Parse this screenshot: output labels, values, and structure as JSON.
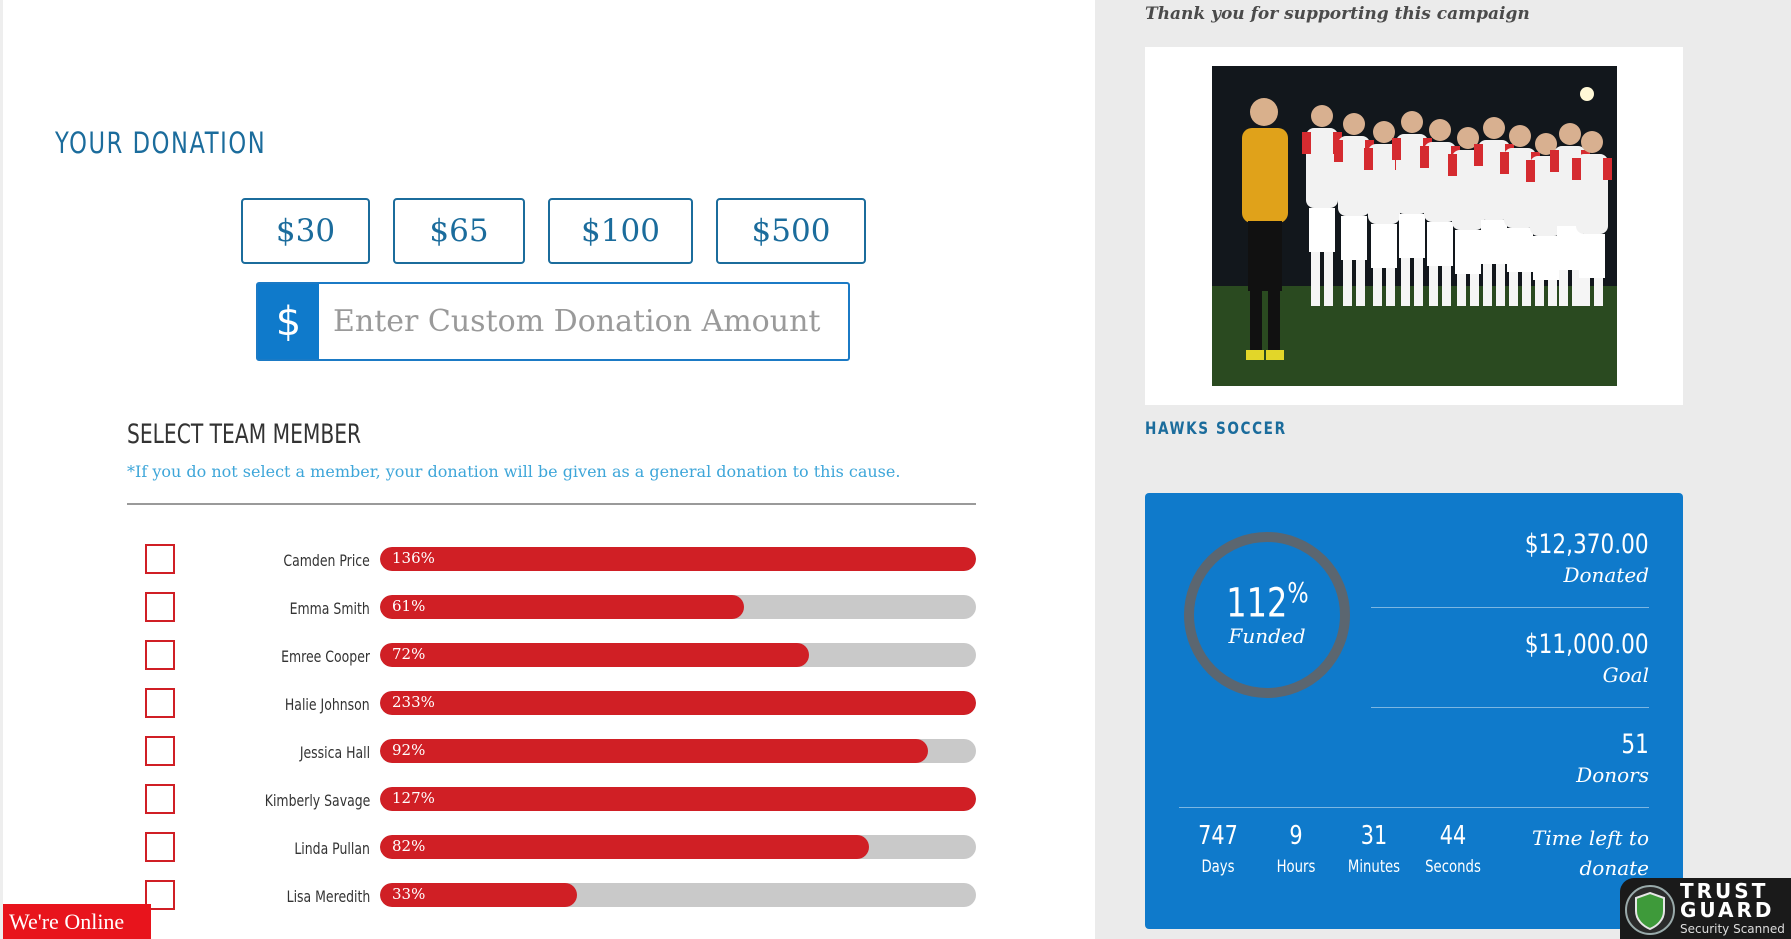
{
  "donation": {
    "title": "YOUR DONATION",
    "amounts": [
      "$30",
      "$65",
      "$100",
      "$500"
    ],
    "currency_symbol": "$",
    "custom_placeholder": "Enter Custom Donation Amount"
  },
  "team": {
    "title": "SELECT TEAM MEMBER",
    "note": "*If you do not select a member, your donation will be given as a general donation to this cause.",
    "members": [
      {
        "name": "Camden Price",
        "percent_label": "136%",
        "progress": 136
      },
      {
        "name": "Emma Smith",
        "percent_label": "61%",
        "progress": 61
      },
      {
        "name": "Emree Cooper",
        "percent_label": "72%",
        "progress": 72
      },
      {
        "name": "Halie Johnson",
        "percent_label": "233%",
        "progress": 233
      },
      {
        "name": "Jessica Hall",
        "percent_label": "92%",
        "progress": 92
      },
      {
        "name": "Kimberly Savage",
        "percent_label": "127%",
        "progress": 127
      },
      {
        "name": "Linda Pullan",
        "percent_label": "82%",
        "progress": 82
      },
      {
        "name": "Lisa Meredith",
        "percent_label": "33%",
        "progress": 33
      }
    ]
  },
  "chat": {
    "label": "We're Online"
  },
  "campaign": {
    "thanks": "Thank you for supporting this campaign",
    "name": "HAWKS SOCCER"
  },
  "stats": {
    "funded_value": "112",
    "funded_symbol": "%",
    "funded_progress": 112,
    "funded_label": "Funded",
    "donated_value": "$12,370.00",
    "donated_label": "Donated",
    "goal_value": "$11,000.00",
    "goal_label": "Goal",
    "donors_value": "51",
    "donors_label": "Donors",
    "countdown": [
      {
        "num": "747",
        "unit": "Days"
      },
      {
        "num": "9",
        "unit": "Hours"
      },
      {
        "num": "31",
        "unit": "Minutes"
      },
      {
        "num": "44",
        "unit": "Seconds"
      }
    ],
    "time_left_label": "Time left to donate"
  },
  "trust_badge": {
    "title": "TRUST GUARD",
    "subtitle": "Security Scanned"
  },
  "colors": {
    "primary_blue": "#0f7acb",
    "heading_blue": "#1b6c9c",
    "progress_red": "#d01f25",
    "progress_track": "#c9c9c9",
    "chat_red": "#e8141c",
    "sidebar_gray": "#ebebeb"
  }
}
